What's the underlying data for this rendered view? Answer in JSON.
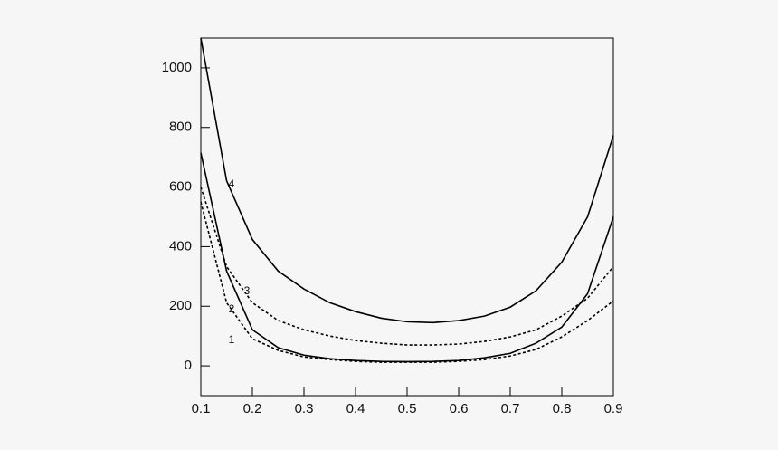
{
  "chart_data": {
    "type": "line",
    "x": [
      0.1,
      0.15,
      0.2,
      0.25,
      0.3,
      0.35,
      0.4,
      0.45,
      0.5,
      0.55,
      0.6,
      0.65,
      0.7,
      0.75,
      0.8,
      0.85,
      0.9
    ],
    "series": [
      {
        "name": "1",
        "color": "#000000",
        "style": "dashed",
        "values": [
          550,
          212,
          91,
          52,
          30,
          21,
          15,
          12,
          12,
          12,
          15,
          21,
          33,
          55,
          97,
          152,
          218
        ]
      },
      {
        "name": "2",
        "color": "#000000",
        "style": "solid",
        "values": [
          715,
          318,
          121,
          61,
          36,
          24,
          18,
          15,
          14,
          15,
          18,
          27,
          42,
          76,
          130,
          242,
          500
        ]
      },
      {
        "name": "3",
        "color": "#000000",
        "style": "dashed",
        "values": [
          600,
          333,
          212,
          152,
          121,
          100,
          85,
          76,
          70,
          70,
          73,
          82,
          97,
          121,
          167,
          227,
          333
        ]
      },
      {
        "name": "4",
        "color": "#000000",
        "style": "solid",
        "values": [
          1100,
          621,
          424,
          318,
          258,
          212,
          182,
          160,
          148,
          145,
          152,
          167,
          197,
          252,
          348,
          500,
          773
        ]
      }
    ],
    "xlim": [
      0.1,
      0.9
    ],
    "xticks": [
      0.1,
      0.2,
      0.3,
      0.4,
      0.5,
      0.6,
      0.7,
      0.8,
      0.9
    ],
    "ylim": [
      -100,
      1100
    ],
    "yticks": [
      0,
      200,
      400,
      600,
      800,
      1000
    ],
    "grid": false
  }
}
